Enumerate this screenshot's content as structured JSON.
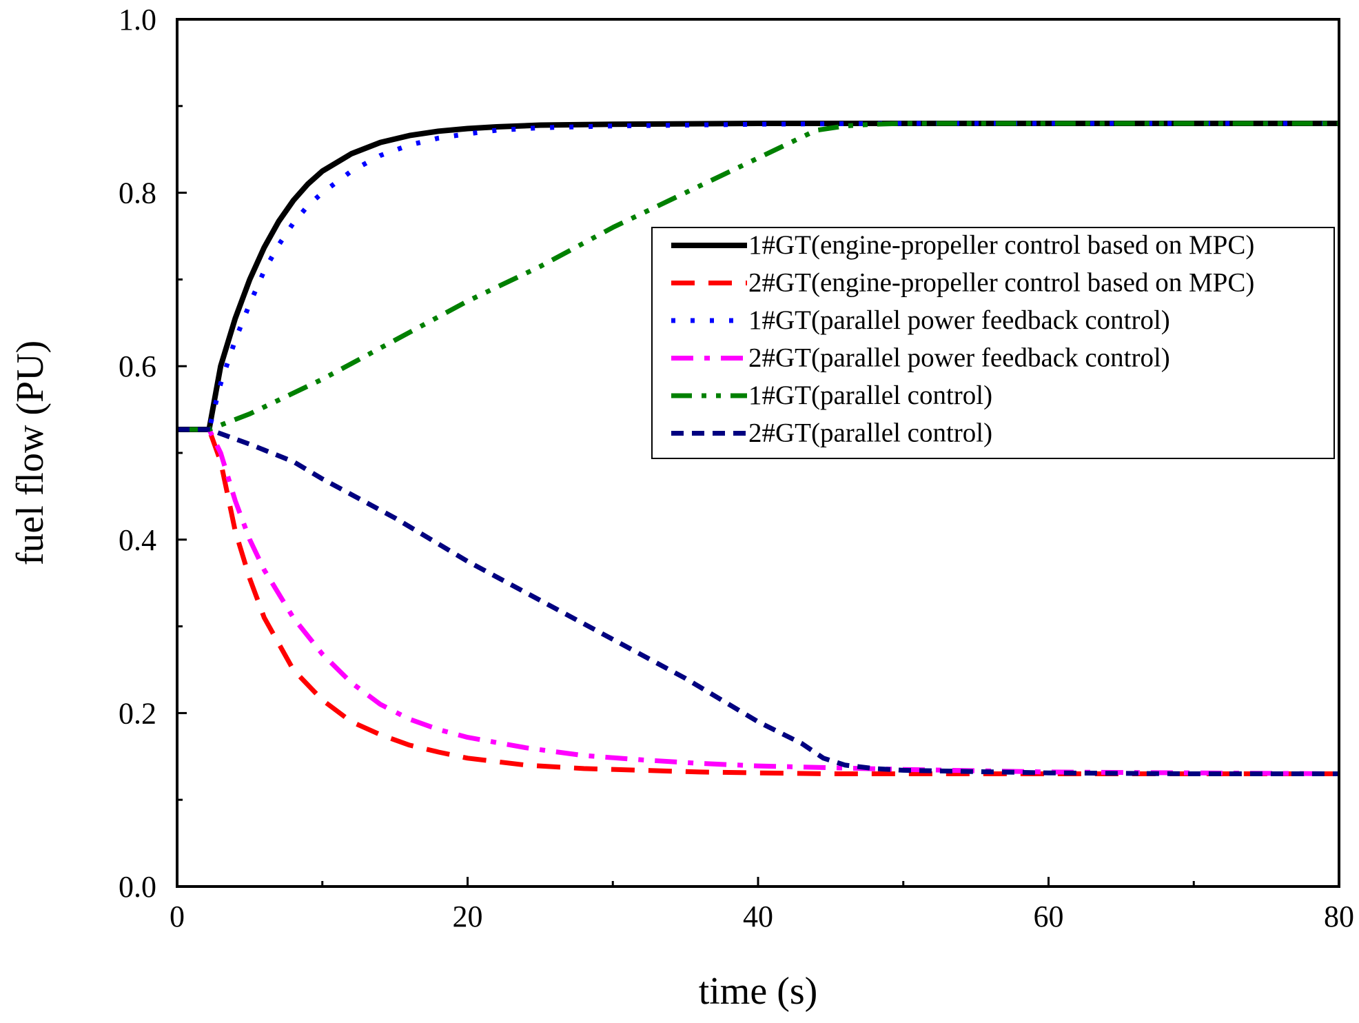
{
  "chart_data": {
    "type": "line",
    "title": "",
    "xlabel": "time (s)",
    "ylabel": "fuel flow (PU)",
    "xlim": [
      0,
      80
    ],
    "ylim": [
      0.0,
      1.0
    ],
    "xticks": [
      0,
      20,
      40,
      60,
      80
    ],
    "xtick_labels": [
      "0",
      "20",
      "40",
      "60",
      "80"
    ],
    "xminor": [
      10,
      30,
      50,
      70
    ],
    "yticks": [
      0.0,
      0.2,
      0.4,
      0.6,
      0.8,
      1.0
    ],
    "ytick_labels": [
      "0.0",
      "0.2",
      "0.4",
      "0.6",
      "0.8",
      "1.0"
    ],
    "yminor": [
      0.1,
      0.3,
      0.5,
      0.7,
      0.9
    ],
    "grid": false,
    "legend_position": "upper-right",
    "series": [
      {
        "name": "1#GT(engine-propeller control based on MPC)",
        "color": "#000000",
        "dash": "solid",
        "x": [
          0,
          2,
          2.2,
          3,
          4,
          5,
          6,
          7,
          8,
          9,
          10,
          12,
          14,
          16,
          18,
          20,
          22,
          25,
          30,
          40,
          50,
          60,
          70,
          80
        ],
        "y": [
          0.527,
          0.527,
          0.527,
          0.6,
          0.655,
          0.7,
          0.737,
          0.767,
          0.791,
          0.81,
          0.825,
          0.845,
          0.858,
          0.866,
          0.871,
          0.874,
          0.876,
          0.878,
          0.879,
          0.88,
          0.88,
          0.88,
          0.88,
          0.88
        ]
      },
      {
        "name": "2#GT(engine-propeller control based on MPC)",
        "color": "#ff0000",
        "dash": "dash",
        "x": [
          0,
          2,
          2.2,
          3,
          4,
          5,
          6,
          8,
          10,
          12,
          14,
          16,
          18,
          20,
          24,
          28,
          32,
          36,
          40,
          45,
          50,
          60,
          70,
          80
        ],
        "y": [
          0.527,
          0.527,
          0.527,
          0.49,
          0.41,
          0.355,
          0.31,
          0.25,
          0.215,
          0.19,
          0.175,
          0.163,
          0.155,
          0.148,
          0.14,
          0.136,
          0.134,
          0.132,
          0.131,
          0.13,
          0.13,
          0.13,
          0.13,
          0.13
        ]
      },
      {
        "name": "1#GT(parallel power feedback control)",
        "color": "#0000ff",
        "dash": "dot",
        "x": [
          0,
          2,
          2.2,
          3,
          4,
          5,
          6,
          7,
          8,
          9,
          10,
          12,
          14,
          16,
          18,
          20,
          22,
          25,
          30,
          35,
          40,
          50,
          60,
          70,
          80
        ],
        "y": [
          0.527,
          0.527,
          0.527,
          0.58,
          0.63,
          0.672,
          0.71,
          0.74,
          0.765,
          0.785,
          0.8,
          0.825,
          0.843,
          0.855,
          0.863,
          0.868,
          0.872,
          0.875,
          0.877,
          0.878,
          0.879,
          0.88,
          0.88,
          0.88,
          0.88
        ]
      },
      {
        "name": "2#GT(parallel power feedback control)",
        "color": "#ff00ff",
        "dash": "dashdot",
        "x": [
          0,
          2,
          2.2,
          3,
          4,
          5,
          6,
          8,
          10,
          12,
          14,
          16,
          18,
          20,
          24,
          28,
          32,
          36,
          40,
          45,
          50,
          60,
          70,
          80
        ],
        "y": [
          0.527,
          0.527,
          0.527,
          0.5,
          0.445,
          0.4,
          0.365,
          0.31,
          0.268,
          0.235,
          0.21,
          0.193,
          0.181,
          0.172,
          0.16,
          0.151,
          0.146,
          0.142,
          0.139,
          0.137,
          0.135,
          0.132,
          0.131,
          0.13
        ]
      },
      {
        "name": "1#GT(parallel control)",
        "color": "#008000",
        "dash": "dashdotdot",
        "x": [
          0,
          2,
          2.2,
          5,
          10,
          15,
          20,
          25,
          30,
          35,
          40,
          44,
          46,
          48,
          50,
          60,
          70,
          80
        ],
        "y": [
          0.527,
          0.527,
          0.527,
          0.545,
          0.585,
          0.63,
          0.675,
          0.715,
          0.76,
          0.8,
          0.84,
          0.872,
          0.877,
          0.879,
          0.88,
          0.88,
          0.88,
          0.88
        ]
      },
      {
        "name": "2#GT(parallel control)",
        "color": "#000080",
        "dash": "shortdash",
        "x": [
          0,
          2,
          2.2,
          5,
          8,
          10,
          15,
          20,
          25,
          30,
          35,
          40,
          43,
          44.5,
          46,
          48,
          50,
          60,
          70,
          80
        ],
        "y": [
          0.527,
          0.527,
          0.527,
          0.51,
          0.49,
          0.47,
          0.425,
          0.375,
          0.33,
          0.285,
          0.24,
          0.19,
          0.165,
          0.148,
          0.14,
          0.136,
          0.134,
          0.131,
          0.13,
          0.13
        ]
      }
    ]
  }
}
